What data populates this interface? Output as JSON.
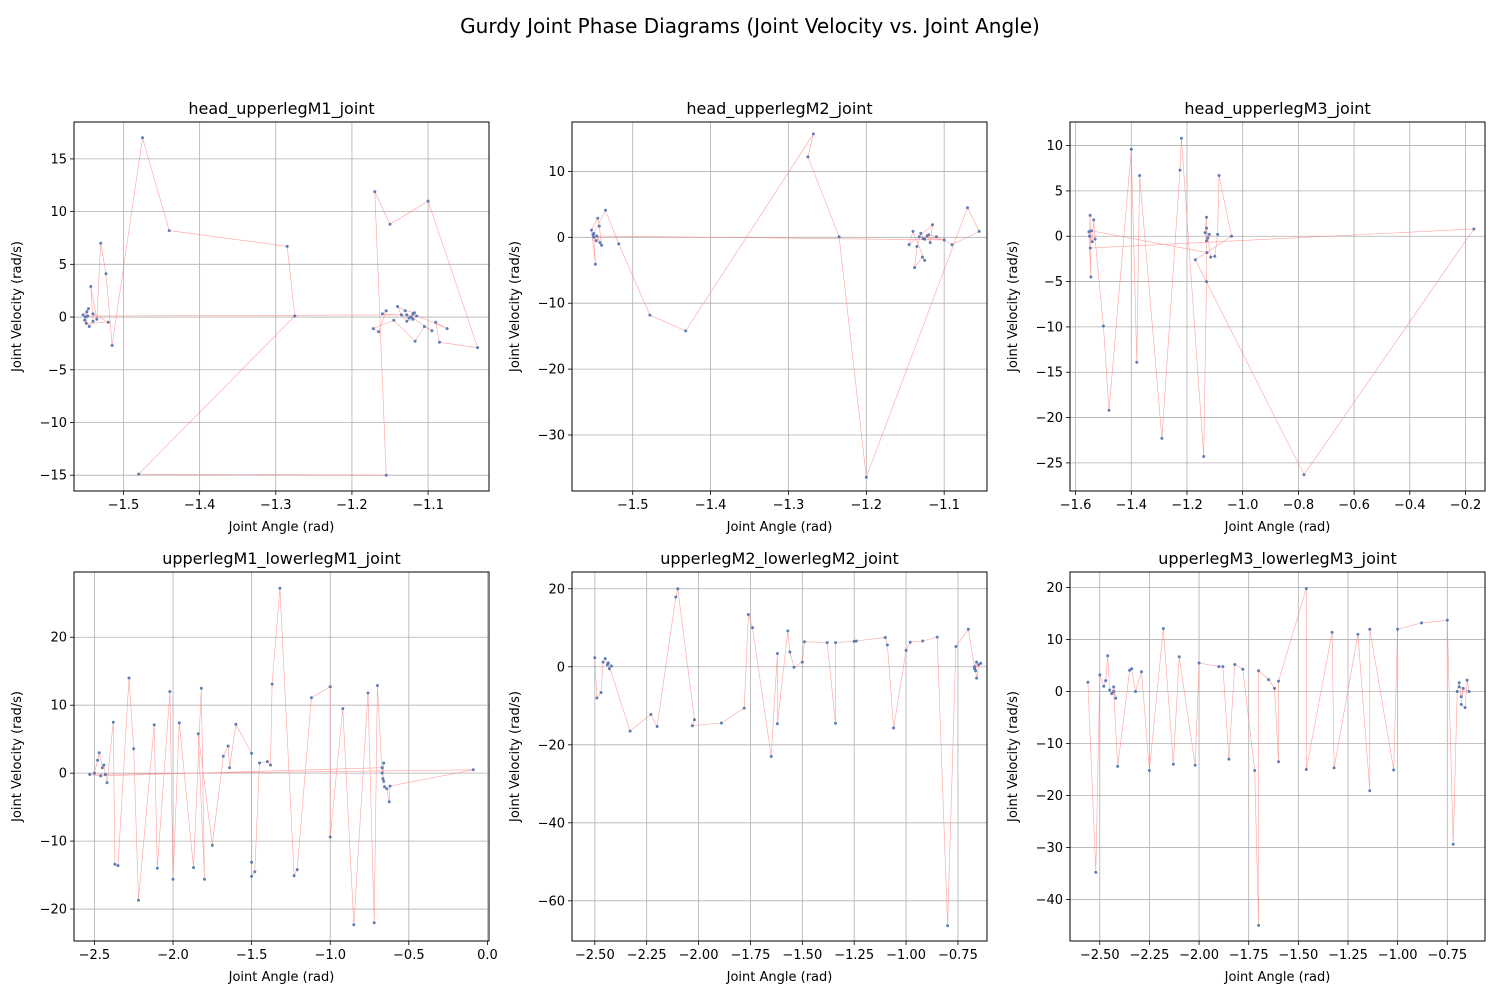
{
  "title": "Gurdy Joint Phase Diagrams (Joint Velocity vs. Joint Angle)",
  "colors": {
    "line": "#ff8080",
    "point": "#4c72b0",
    "grid": "#b0b0b0"
  },
  "chart_data": [
    {
      "type": "scatter",
      "title": "head_upperlegM1_joint",
      "xlabel": "Joint Angle (rad)",
      "ylabel": "Joint Velocity (rad/s)",
      "xlim": [
        -1.565,
        -1.02
      ],
      "ylim": [
        -16.5,
        18.5
      ],
      "xticks": [
        -1.5,
        -1.4,
        -1.3,
        -1.2,
        -1.1
      ],
      "xtick_labels": [
        "−1.5",
        "−1.4",
        "−1.3",
        "−1.2",
        "−1.1"
      ],
      "yticks": [
        -15,
        -10,
        -5,
        0,
        5,
        10,
        15
      ],
      "ytick_labels": [
        "−15",
        "−10",
        "−5",
        "0",
        "5",
        "10",
        "15"
      ],
      "grid": true,
      "points": [
        [
          -1.55,
          0
        ],
        [
          -1.548,
          0.5
        ],
        [
          -1.551,
          -0.3
        ],
        [
          -1.546,
          0.8
        ],
        [
          -1.553,
          0.2
        ],
        [
          -1.545,
          -0.9
        ],
        [
          -1.54,
          -0.4
        ],
        [
          -1.543,
          2.9
        ],
        [
          -1.535,
          -0.2
        ],
        [
          -1.53,
          7.0
        ],
        [
          -1.523,
          4.1
        ],
        [
          -1.515,
          -2.7
        ],
        [
          -1.475,
          17.0
        ],
        [
          -1.44,
          8.2
        ],
        [
          -1.285,
          6.7
        ],
        [
          -1.275,
          0.1
        ],
        [
          -1.48,
          -14.9
        ],
        [
          -1.155,
          -15.0
        ],
        [
          -1.17,
          11.9
        ],
        [
          -1.15,
          8.8
        ],
        [
          -1.1,
          11.0
        ],
        [
          -1.035,
          -2.9
        ],
        [
          -1.085,
          -2.4
        ],
        [
          -1.09,
          -0.5
        ],
        [
          -1.075,
          -1.1
        ],
        [
          -1.12,
          0.3
        ],
        [
          -1.125,
          -0.1
        ],
        [
          -1.118,
          0.4
        ],
        [
          -1.13,
          0.6
        ],
        [
          -1.14,
          1.0
        ],
        [
          -1.135,
          0.2
        ],
        [
          -1.128,
          -0.4
        ],
        [
          -1.12,
          -0.2
        ],
        [
          -1.115,
          0.1
        ],
        [
          -1.16,
          0.3
        ],
        [
          -1.155,
          0.6
        ],
        [
          -1.165,
          -1.4
        ],
        [
          -1.172,
          -1.1
        ],
        [
          -1.145,
          -0.3
        ],
        [
          -1.117,
          -2.3
        ],
        [
          -1.105,
          -0.9
        ],
        [
          -1.095,
          -1.3
        ],
        [
          -1.122,
          0.0
        ],
        [
          -1.128,
          0.2
        ],
        [
          -1.547,
          0.1
        ],
        [
          -1.549,
          -0.6
        ],
        [
          -1.52,
          -0.5
        ],
        [
          -1.54,
          0.3
        ]
      ]
    },
    {
      "type": "scatter",
      "title": "head_upperlegM2_joint",
      "xlabel": "Joint Angle (rad)",
      "ylabel": "Joint Velocity (rad/s)",
      "xlim": [
        -1.578,
        -1.045
      ],
      "ylim": [
        -38.5,
        17.5
      ],
      "xticks": [
        -1.5,
        -1.4,
        -1.3,
        -1.2,
        -1.1
      ],
      "xtick_labels": [
        "−1.5",
        "−1.4",
        "−1.3",
        "−1.2",
        "−1.1"
      ],
      "yticks": [
        -30,
        -20,
        -10,
        0,
        10
      ],
      "ytick_labels": [
        "−30",
        "−20",
        "−10",
        "0",
        "10"
      ],
      "grid": true,
      "points": [
        [
          -1.55,
          0
        ],
        [
          -1.548,
          -4.1
        ],
        [
          -1.553,
          1.1
        ],
        [
          -1.545,
          2.9
        ],
        [
          -1.543,
          1.7
        ],
        [
          -1.54,
          -1.2
        ],
        [
          -1.547,
          -0.5
        ],
        [
          -1.551,
          0.4
        ],
        [
          -1.535,
          4.1
        ],
        [
          -1.518,
          -1.0
        ],
        [
          -1.478,
          -11.8
        ],
        [
          -1.432,
          -14.2
        ],
        [
          -1.268,
          15.7
        ],
        [
          -1.275,
          12.2
        ],
        [
          -1.235,
          0.1
        ],
        [
          -1.2,
          -36.4
        ],
        [
          -1.07,
          4.5
        ],
        [
          -1.055,
          0.9
        ],
        [
          -1.09,
          -1.1
        ],
        [
          -1.11,
          0.1
        ],
        [
          -1.12,
          0.4
        ],
        [
          -1.125,
          -0.3
        ],
        [
          -1.13,
          0.6
        ],
        [
          -1.135,
          -1.4
        ],
        [
          -1.138,
          -4.6
        ],
        [
          -1.128,
          -3.0
        ],
        [
          -1.125,
          -3.5
        ],
        [
          -1.14,
          0.9
        ],
        [
          -1.145,
          -1.1
        ],
        [
          -1.115,
          1.9
        ],
        [
          -1.118,
          -0.8
        ],
        [
          -1.122,
          0.2
        ],
        [
          -1.127,
          -0.2
        ],
        [
          -1.132,
          0.1
        ],
        [
          -1.1,
          -0.4
        ],
        [
          -1.546,
          0.2
        ],
        [
          -1.542,
          -0.8
        ],
        [
          -1.55,
          0.6
        ]
      ]
    },
    {
      "type": "scatter",
      "title": "head_upperlegM3_joint",
      "xlabel": "Joint Angle (rad)",
      "ylabel": "Joint Velocity (rad/s)",
      "xlim": [
        -1.62,
        -0.13
      ],
      "ylim": [
        -28.1,
        12.6
      ],
      "xticks": [
        -1.6,
        -1.4,
        -1.2,
        -1.0,
        -0.8,
        -0.6,
        -0.4,
        -0.2
      ],
      "xtick_labels": [
        "−1.6",
        "−1.4",
        "−1.2",
        "−1.0",
        "−0.8",
        "−0.6",
        "−0.4",
        "−0.2"
      ],
      "yticks": [
        -25,
        -20,
        -15,
        -10,
        -5,
        0,
        5,
        10
      ],
      "ytick_labels": [
        "−25",
        "−20",
        "−15",
        "−10",
        "−5",
        "0",
        "5",
        "10"
      ],
      "grid": true,
      "points": [
        [
          -1.55,
          0
        ],
        [
          -1.548,
          2.3
        ],
        [
          -1.545,
          -4.5
        ],
        [
          -1.552,
          0.5
        ],
        [
          -1.54,
          -0.6
        ],
        [
          -1.535,
          1.8
        ],
        [
          -1.53,
          -0.3
        ],
        [
          -1.5,
          -9.9
        ],
        [
          -1.48,
          -19.2
        ],
        [
          -1.4,
          9.6
        ],
        [
          -1.38,
          -13.9
        ],
        [
          -1.37,
          6.7
        ],
        [
          -1.29,
          -22.3
        ],
        [
          -1.225,
          7.3
        ],
        [
          -1.22,
          10.8
        ],
        [
          -1.14,
          -24.3
        ],
        [
          -1.13,
          -5.0
        ],
        [
          -1.13,
          2.1
        ],
        [
          -1.135,
          0.4
        ],
        [
          -1.13,
          -0.5
        ],
        [
          -1.12,
          0.2
        ],
        [
          -1.125,
          -0.2
        ],
        [
          -1.13,
          0.9
        ],
        [
          -1.115,
          -2.3
        ],
        [
          -1.1,
          -2.2
        ],
        [
          -1.09,
          0.2
        ],
        [
          -1.085,
          6.7
        ],
        [
          -1.04,
          0.0
        ],
        [
          -1.17,
          -2.6
        ],
        [
          -0.78,
          -26.3
        ],
        [
          -0.17,
          0.8
        ],
        [
          -1.547,
          -1.3
        ],
        [
          -1.543,
          0.6
        ],
        [
          -1.128,
          -1.8
        ]
      ]
    },
    {
      "type": "scatter",
      "title": "upperlegM1_lowerlegM1_joint",
      "xlabel": "Joint Angle (rad)",
      "ylabel": "Joint Velocity (rad/s)",
      "xlim": [
        -2.63,
        0.01
      ],
      "ylim": [
        -24.7,
        29.6
      ],
      "xticks": [
        -2.5,
        -2.0,
        -1.5,
        -1.0,
        -0.5,
        0.0
      ],
      "xtick_labels": [
        "−2.5",
        "−2.0",
        "−1.5",
        "−1.0",
        "−0.5",
        "0.0"
      ],
      "yticks": [
        -20,
        -10,
        0,
        10,
        20
      ],
      "ytick_labels": [
        "−20",
        "−10",
        "0",
        "10",
        "20"
      ],
      "grid": true,
      "points": [
        [
          -2.5,
          0
        ],
        [
          -2.48,
          1.9
        ],
        [
          -2.47,
          3.0
        ],
        [
          -2.45,
          0.8
        ],
        [
          -2.44,
          1.2
        ],
        [
          -2.43,
          -0.2
        ],
        [
          -2.42,
          -1.4
        ],
        [
          -2.38,
          7.5
        ],
        [
          -2.37,
          -13.4
        ],
        [
          -2.35,
          -13.6
        ],
        [
          -2.28,
          14.0
        ],
        [
          -2.25,
          3.6
        ],
        [
          -2.22,
          -18.7
        ],
        [
          -2.12,
          7.1
        ],
        [
          -2.1,
          -14.0
        ],
        [
          -2.02,
          12.0
        ],
        [
          -2.0,
          -15.6
        ],
        [
          -1.96,
          7.4
        ],
        [
          -1.87,
          -13.9
        ],
        [
          -1.82,
          12.5
        ],
        [
          -1.8,
          -15.6
        ],
        [
          -1.84,
          5.8
        ],
        [
          -1.75,
          -10.6
        ],
        [
          -1.68,
          2.5
        ],
        [
          -1.65,
          4.0
        ],
        [
          -1.64,
          0.8
        ],
        [
          -1.6,
          7.2
        ],
        [
          -1.5,
          2.9
        ],
        [
          -1.5,
          -13.1
        ],
        [
          -1.5,
          -15.2
        ],
        [
          -1.48,
          -14.5
        ],
        [
          -1.45,
          1.5
        ],
        [
          -1.4,
          1.7
        ],
        [
          -1.38,
          1.2
        ],
        [
          -1.37,
          13.1
        ],
        [
          -1.32,
          27.2
        ],
        [
          -1.23,
          -15.1
        ],
        [
          -1.21,
          -14.2
        ],
        [
          -1.12,
          11.1
        ],
        [
          -1.0,
          12.7
        ],
        [
          -1.0,
          -9.4
        ],
        [
          -0.92,
          9.5
        ],
        [
          -0.85,
          -22.3
        ],
        [
          -0.76,
          11.8
        ],
        [
          -0.72,
          -22.0
        ],
        [
          -0.7,
          12.9
        ],
        [
          -0.67,
          0.0
        ],
        [
          -0.66,
          1.5
        ],
        [
          -0.665,
          -0.8
        ],
        [
          -0.655,
          -2.0
        ],
        [
          -0.64,
          -2.3
        ],
        [
          -0.625,
          -4.2
        ],
        [
          -0.62,
          -1.9
        ],
        [
          -0.09,
          0.5
        ],
        [
          -2.53,
          -0.2
        ],
        [
          -2.46,
          -0.4
        ],
        [
          -0.67,
          0.8
        ],
        [
          -0.66,
          -1.2
        ]
      ]
    },
    {
      "type": "scatter",
      "title": "upperlegM2_lowerlegM2_joint",
      "xlabel": "Joint Angle (rad)",
      "ylabel": "Joint Velocity (rad/s)",
      "xlim": [
        -2.61,
        -0.61
      ],
      "ylim": [
        -70.3,
        24.3
      ],
      "xticks": [
        -2.5,
        -2.25,
        -2.0,
        -1.75,
        -1.5,
        -1.25,
        -1.0,
        -0.75
      ],
      "xtick_labels": [
        "−2.50",
        "−2.25",
        "−2.00",
        "−1.75",
        "−1.50",
        "−1.25",
        "−1.00",
        "−0.75"
      ],
      "yticks": [
        -60,
        -40,
        -20,
        0,
        20
      ],
      "ytick_labels": [
        "−60",
        "−40",
        "−20",
        "0",
        "20"
      ],
      "grid": true,
      "points": [
        [
          -2.5,
          2.3
        ],
        [
          -2.49,
          -8.0
        ],
        [
          -2.47,
          -6.6
        ],
        [
          -2.46,
          1.2
        ],
        [
          -2.45,
          2.1
        ],
        [
          -2.44,
          0.5
        ],
        [
          -2.43,
          -0.5
        ],
        [
          -2.42,
          0.2
        ],
        [
          -2.435,
          1.0
        ],
        [
          -2.33,
          -16.5
        ],
        [
          -2.23,
          -12.2
        ],
        [
          -2.2,
          -15.3
        ],
        [
          -2.11,
          17.9
        ],
        [
          -2.1,
          20.0
        ],
        [
          -2.02,
          -13.6
        ],
        [
          -2.03,
          -15.1
        ],
        [
          -1.89,
          -14.4
        ],
        [
          -1.78,
          -10.6
        ],
        [
          -1.76,
          13.4
        ],
        [
          -1.74,
          10.0
        ],
        [
          -1.65,
          -23.0
        ],
        [
          -1.62,
          3.4
        ],
        [
          -1.62,
          -14.6
        ],
        [
          -1.57,
          9.2
        ],
        [
          -1.56,
          3.8
        ],
        [
          -1.54,
          -0.1
        ],
        [
          -1.5,
          1.2
        ],
        [
          -1.49,
          6.4
        ],
        [
          -1.38,
          6.2
        ],
        [
          -1.34,
          -14.5
        ],
        [
          -1.34,
          6.2
        ],
        [
          -1.25,
          6.5
        ],
        [
          -1.24,
          6.6
        ],
        [
          -1.1,
          7.5
        ],
        [
          -1.09,
          5.6
        ],
        [
          -1.06,
          -15.7
        ],
        [
          -1.0,
          4.2
        ],
        [
          -0.98,
          6.3
        ],
        [
          -0.92,
          6.6
        ],
        [
          -0.85,
          7.6
        ],
        [
          -0.8,
          -66.4
        ],
        [
          -0.76,
          5.2
        ],
        [
          -0.7,
          9.6
        ],
        [
          -0.67,
          0.0
        ],
        [
          -0.66,
          1.2
        ],
        [
          -0.665,
          -1.0
        ],
        [
          -0.66,
          -2.9
        ],
        [
          -0.65,
          0.5
        ],
        [
          -0.64,
          0.9
        ],
        [
          -0.67,
          -0.5
        ]
      ]
    },
    {
      "type": "scatter",
      "title": "upperlegM3_lowerlegM3_joint",
      "xlabel": "Joint Angle (rad)",
      "ylabel": "Joint Velocity (rad/s)",
      "xlim": [
        -2.65,
        -0.56
      ],
      "ylim": [
        -48.0,
        23.0
      ],
      "xticks": [
        -2.5,
        -2.25,
        -2.0,
        -1.75,
        -1.5,
        -1.25,
        -1.0,
        -0.75
      ],
      "xtick_labels": [
        "−2.50",
        "−2.25",
        "−2.00",
        "−1.75",
        "−1.50",
        "−1.25",
        "−1.00",
        "−0.75"
      ],
      "yticks": [
        -40,
        -30,
        -20,
        -10,
        0,
        10,
        20
      ],
      "ytick_labels": [
        "−40",
        "−30",
        "−20",
        "−10",
        "0",
        "10",
        "20"
      ],
      "grid": true,
      "points": [
        [
          -2.56,
          1.8
        ],
        [
          -2.52,
          -34.8
        ],
        [
          -2.5,
          3.2
        ],
        [
          -2.48,
          1.0
        ],
        [
          -2.47,
          2.1
        ],
        [
          -2.46,
          6.9
        ],
        [
          -2.45,
          0.3
        ],
        [
          -2.44,
          -0.4
        ],
        [
          -2.43,
          0.9
        ],
        [
          -2.42,
          -1.3
        ],
        [
          -2.43,
          0.0
        ],
        [
          -2.41,
          -14.4
        ],
        [
          -2.35,
          4.1
        ],
        [
          -2.34,
          4.4
        ],
        [
          -2.32,
          0.0
        ],
        [
          -2.29,
          3.8
        ],
        [
          -2.25,
          -15.2
        ],
        [
          -2.18,
          12.1
        ],
        [
          -2.13,
          -14.0
        ],
        [
          -2.1,
          6.7
        ],
        [
          -2.02,
          -14.2
        ],
        [
          -2.0,
          5.5
        ],
        [
          -1.9,
          4.8
        ],
        [
          -1.88,
          4.8
        ],
        [
          -1.85,
          -13.0
        ],
        [
          -1.82,
          5.2
        ],
        [
          -1.78,
          4.3
        ],
        [
          -1.72,
          -15.2
        ],
        [
          -1.7,
          -45.0
        ],
        [
          -1.7,
          4.0
        ],
        [
          -1.65,
          2.3
        ],
        [
          -1.62,
          0.6
        ],
        [
          -1.6,
          -13.5
        ],
        [
          -1.6,
          2.0
        ],
        [
          -1.46,
          19.8
        ],
        [
          -1.46,
          -15.0
        ],
        [
          -1.33,
          11.4
        ],
        [
          -1.32,
          -14.7
        ],
        [
          -1.2,
          11.0
        ],
        [
          -1.14,
          -19.1
        ],
        [
          -1.14,
          12.0
        ],
        [
          -1.02,
          -15.1
        ],
        [
          -1.0,
          12.0
        ],
        [
          -0.88,
          13.2
        ],
        [
          -0.75,
          13.7
        ],
        [
          -0.72,
          -29.4
        ],
        [
          -0.7,
          0.0
        ],
        [
          -0.69,
          1.7
        ],
        [
          -0.68,
          -1.0
        ],
        [
          -0.67,
          0.6
        ],
        [
          -0.68,
          -2.5
        ],
        [
          -0.66,
          -3.1
        ],
        [
          -0.65,
          2.2
        ],
        [
          -0.64,
          0.0
        ],
        [
          -0.69,
          0.9
        ]
      ]
    }
  ]
}
